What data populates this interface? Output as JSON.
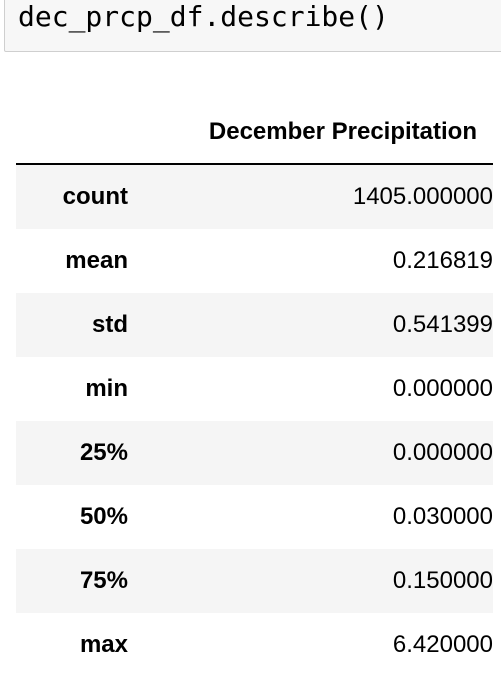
{
  "code_cell": {
    "source": "dec_prcp_df.describe()"
  },
  "table": {
    "column_header": "December Precipitation",
    "rows": [
      {
        "label": "count",
        "value": "1405.000000"
      },
      {
        "label": "mean",
        "value": "0.216819"
      },
      {
        "label": "std",
        "value": "0.541399"
      },
      {
        "label": "min",
        "value": "0.000000"
      },
      {
        "label": "25%",
        "value": "0.000000"
      },
      {
        "label": "50%",
        "value": "0.030000"
      },
      {
        "label": "75%",
        "value": "0.150000"
      },
      {
        "label": "max",
        "value": "6.420000"
      }
    ]
  }
}
